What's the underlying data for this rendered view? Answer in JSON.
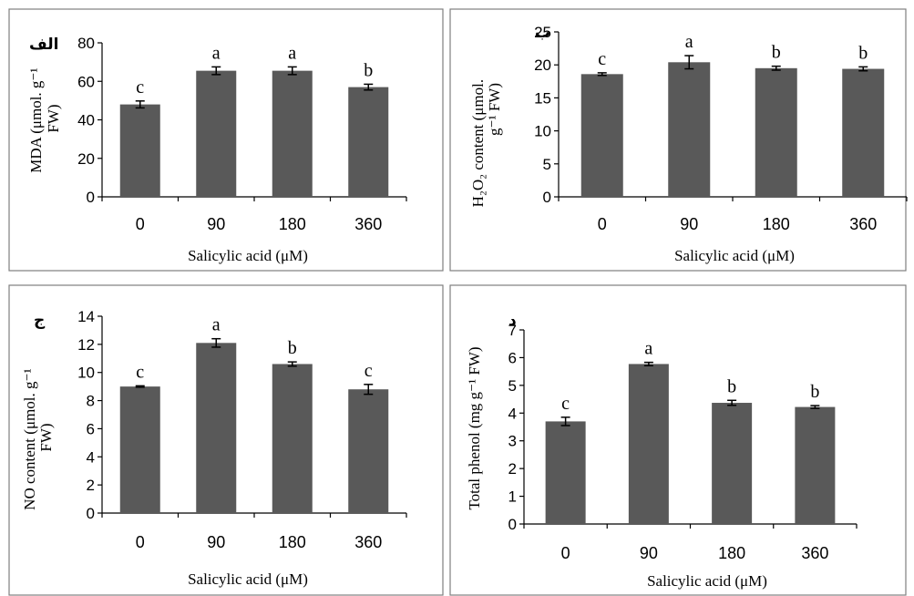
{
  "colors": {
    "bar": "#595959",
    "axis": "#000000",
    "frame": "#7f7f7f",
    "background": "#ffffff"
  },
  "chart_data": [
    {
      "type": "bar",
      "panel_label": "الف",
      "categories": [
        "0",
        "90",
        "180",
        "360"
      ],
      "values": [
        48,
        65.5,
        65.5,
        57
      ],
      "errors": [
        1.8,
        2,
        2,
        1.5
      ],
      "letters": [
        "c",
        "a",
        "a",
        "b"
      ],
      "xlabel": "Salicylic acid (μM)",
      "ylabel_lines": [
        "MDA (μmol. g⁻¹",
        "FW)"
      ],
      "ylim": [
        0,
        80
      ],
      "yticks": [
        "0",
        "20",
        "40",
        "60",
        "80"
      ],
      "grid": false
    },
    {
      "type": "bar",
      "panel_label": "ب",
      "categories": [
        "0",
        "90",
        "180",
        "360"
      ],
      "values": [
        18.6,
        20.4,
        19.5,
        19.4
      ],
      "errors": [
        0.2,
        1,
        0.3,
        0.3
      ],
      "letters": [
        "c",
        "a",
        "b",
        "b"
      ],
      "xlabel": "Salicylic acid (μM)",
      "ylabel_lines": [
        "H₂O₂ content (μmol.",
        "g⁻¹ FW)"
      ],
      "ylim": [
        0,
        25
      ],
      "yticks": [
        "0",
        "5",
        "10",
        "15",
        "20",
        "25"
      ],
      "grid": false
    },
    {
      "type": "bar",
      "panel_label": "ج",
      "categories": [
        "0",
        "90",
        "180",
        "360"
      ],
      "values": [
        9,
        12.1,
        10.6,
        8.8
      ],
      "errors": [
        0.05,
        0.3,
        0.15,
        0.35
      ],
      "letters": [
        "c",
        "a",
        "b",
        "c"
      ],
      "xlabel": "Salicylic acid (μM)",
      "ylabel_lines": [
        "NO content (μmol. g⁻¹",
        "FW)"
      ],
      "ylim": [
        0,
        14
      ],
      "yticks": [
        "0",
        "2",
        "4",
        "6",
        "8",
        "10",
        "12",
        "14"
      ],
      "grid": false
    },
    {
      "type": "bar",
      "panel_label": "د",
      "categories": [
        "0",
        "90",
        "180",
        "360"
      ],
      "values": [
        3.7,
        5.77,
        4.37,
        4.22
      ],
      "errors": [
        0.15,
        0.06,
        0.09,
        0.05
      ],
      "letters": [
        "c",
        "a",
        "b",
        "b"
      ],
      "xlabel": "Salicylic acid (μM)",
      "ylabel_lines": [
        "Total phenol (mg g⁻¹ FW)"
      ],
      "ylim": [
        0,
        7
      ],
      "yticks": [
        "0",
        "1",
        "2",
        "3",
        "4",
        "5",
        "6",
        "7"
      ],
      "grid": false
    }
  ]
}
